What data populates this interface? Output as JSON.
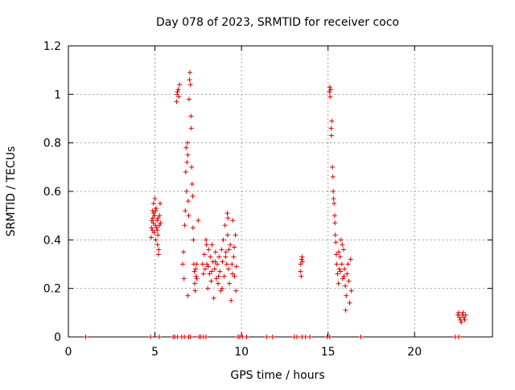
{
  "chart_data": {
    "type": "scatter",
    "title": "Day 078 of 2023, SRMTID for receiver coco",
    "xlabel": "GPS time / hours",
    "ylabel": "SRMTID / TECUs",
    "xlim": [
      0,
      24.5
    ],
    "ylim": [
      0,
      1.2
    ],
    "xticks": [
      0,
      5,
      10,
      15,
      20
    ],
    "yticks": [
      0,
      0.2,
      0.4,
      0.6,
      0.8,
      1.0,
      1.2
    ],
    "xtick_labels": [
      "0",
      "5",
      "10",
      "15",
      "20"
    ],
    "ytick_labels": [
      "0",
      "0.2",
      "0.4",
      "0.6",
      "0.8",
      "1",
      "1.2"
    ],
    "grid": true,
    "marker": "plus",
    "color": "#dd0000",
    "series": [
      {
        "name": "SRMTID",
        "points": [
          [
            1.0,
            0.0
          ],
          [
            4.75,
            0.0
          ],
          [
            5.25,
            0.0
          ],
          [
            6.05,
            0.0
          ],
          [
            6.15,
            0.0
          ],
          [
            6.3,
            0.0
          ],
          [
            6.55,
            0.0
          ],
          [
            6.7,
            0.0
          ],
          [
            6.95,
            0.0
          ],
          [
            7.05,
            0.0
          ],
          [
            7.55,
            0.0
          ],
          [
            7.65,
            0.0
          ],
          [
            7.8,
            0.0
          ],
          [
            7.95,
            0.0
          ],
          [
            9.8,
            0.0
          ],
          [
            9.9,
            0.0
          ],
          [
            10.05,
            0.0
          ],
          [
            10.3,
            0.0
          ],
          [
            11.45,
            0.0
          ],
          [
            11.8,
            0.0
          ],
          [
            13.05,
            0.0
          ],
          [
            13.2,
            0.0
          ],
          [
            13.5,
            0.0
          ],
          [
            13.7,
            0.0
          ],
          [
            13.95,
            0.0
          ],
          [
            14.95,
            0.0
          ],
          [
            15.1,
            0.0
          ],
          [
            16.9,
            0.0
          ],
          [
            22.35,
            0.0
          ],
          [
            22.55,
            0.0
          ],
          [
            4.78,
            0.41
          ],
          [
            4.8,
            0.45
          ],
          [
            4.82,
            0.48
          ],
          [
            4.85,
            0.44
          ],
          [
            4.87,
            0.52
          ],
          [
            4.9,
            0.47
          ],
          [
            4.92,
            0.55
          ],
          [
            4.95,
            0.43
          ],
          [
            4.97,
            0.5
          ],
          [
            5.0,
            0.57
          ],
          [
            5.02,
            0.46
          ],
          [
            5.05,
            0.4
          ],
          [
            5.07,
            0.53
          ],
          [
            5.1,
            0.45
          ],
          [
            5.12,
            0.48
          ],
          [
            5.15,
            0.38
          ],
          [
            5.17,
            0.42
          ],
          [
            5.2,
            0.34
          ],
          [
            5.22,
            0.36
          ],
          [
            5.25,
            0.46
          ],
          [
            5.27,
            0.5
          ],
          [
            5.3,
            0.55
          ],
          [
            5.32,
            0.47
          ],
          [
            4.88,
            0.49
          ],
          [
            4.93,
            0.51
          ],
          [
            5.03,
            0.52
          ],
          [
            5.13,
            0.44
          ],
          [
            5.18,
            0.49
          ],
          [
            6.25,
            0.97
          ],
          [
            6.28,
            1.0
          ],
          [
            6.3,
            1.01
          ],
          [
            6.35,
            1.02
          ],
          [
            6.38,
            0.99
          ],
          [
            6.42,
            1.04
          ],
          [
            6.6,
            0.3
          ],
          [
            6.65,
            0.35
          ],
          [
            6.68,
            0.24
          ],
          [
            6.72,
            0.46
          ],
          [
            6.75,
            0.52
          ],
          [
            6.78,
            0.68
          ],
          [
            6.8,
            0.78
          ],
          [
            6.82,
            0.6
          ],
          [
            6.85,
            0.72
          ],
          [
            6.88,
            0.8
          ],
          [
            6.9,
            0.75
          ],
          [
            6.92,
            0.56
          ],
          [
            6.95,
            0.5
          ],
          [
            6.97,
            0.98
          ],
          [
            7.0,
            1.06
          ],
          [
            7.02,
            1.09
          ],
          [
            7.05,
            1.04
          ],
          [
            7.08,
            0.91
          ],
          [
            7.1,
            0.86
          ],
          [
            7.12,
            0.7
          ],
          [
            7.15,
            0.63
          ],
          [
            7.18,
            0.58
          ],
          [
            7.2,
            0.45
          ],
          [
            7.22,
            0.4
          ],
          [
            7.25,
            0.3
          ],
          [
            7.28,
            0.27
          ],
          [
            7.3,
            0.22
          ],
          [
            7.32,
            0.19
          ],
          [
            7.35,
            0.28
          ],
          [
            7.38,
            0.25
          ],
          [
            7.4,
            0.3
          ],
          [
            7.42,
            0.24
          ],
          [
            6.9,
            0.17
          ],
          [
            7.5,
            0.48
          ],
          [
            7.75,
            0.3
          ],
          [
            7.8,
            0.26
          ],
          [
            7.85,
            0.34
          ],
          [
            7.9,
            0.28
          ],
          [
            7.95,
            0.4
          ],
          [
            8.0,
            0.3
          ],
          [
            8.05,
            0.2
          ],
          [
            8.1,
            0.36
          ],
          [
            8.15,
            0.26
          ],
          [
            8.2,
            0.33
          ],
          [
            8.25,
            0.23
          ],
          [
            8.3,
            0.38
          ],
          [
            8.35,
            0.31
          ],
          [
            8.4,
            0.16
          ],
          [
            8.45,
            0.28
          ],
          [
            8.5,
            0.35
          ],
          [
            8.55,
            0.24
          ],
          [
            8.6,
            0.3
          ],
          [
            8.65,
            0.22
          ],
          [
            8.7,
            0.33
          ],
          [
            8.75,
            0.27
          ],
          [
            8.8,
            0.19
          ],
          [
            8.85,
            0.36
          ],
          [
            8.9,
            0.31
          ],
          [
            8.95,
            0.4
          ],
          [
            9.0,
            0.25
          ],
          [
            9.05,
            0.46
          ],
          [
            9.1,
            0.35
          ],
          [
            9.15,
            0.3
          ],
          [
            9.2,
            0.42
          ],
          [
            9.25,
            0.28
          ],
          [
            9.3,
            0.22
          ],
          [
            9.35,
            0.38
          ],
          [
            9.4,
            0.15
          ],
          [
            9.45,
            0.3
          ],
          [
            9.5,
            0.48
          ],
          [
            9.55,
            0.33
          ],
          [
            9.6,
            0.25
          ],
          [
            9.65,
            0.42
          ],
          [
            9.7,
            0.29
          ],
          [
            7.98,
            0.38
          ],
          [
            8.08,
            0.29
          ],
          [
            8.28,
            0.27
          ],
          [
            8.48,
            0.31
          ],
          [
            8.68,
            0.25
          ],
          [
            8.88,
            0.2
          ],
          [
            9.08,
            0.33
          ],
          [
            9.28,
            0.36
          ],
          [
            9.48,
            0.26
          ],
          [
            9.68,
            0.19
          ],
          [
            9.18,
            0.51
          ],
          [
            9.22,
            0.49
          ],
          [
            9.58,
            0.37
          ],
          [
            13.4,
            0.27
          ],
          [
            13.42,
            0.3
          ],
          [
            13.45,
            0.25
          ],
          [
            13.48,
            0.32
          ],
          [
            13.5,
            0.33
          ],
          [
            13.52,
            0.31
          ],
          [
            15.08,
            1.01
          ],
          [
            15.1,
            1.03
          ],
          [
            15.12,
            0.99
          ],
          [
            15.15,
            1.02
          ],
          [
            15.18,
            0.86
          ],
          [
            15.2,
            0.83
          ],
          [
            15.22,
            0.89
          ],
          [
            15.25,
            0.7
          ],
          [
            15.28,
            0.66
          ],
          [
            15.3,
            0.6
          ],
          [
            15.32,
            0.57
          ],
          [
            15.35,
            0.55
          ],
          [
            15.38,
            0.5
          ],
          [
            15.4,
            0.47
          ],
          [
            15.42,
            0.42
          ],
          [
            15.45,
            0.39
          ],
          [
            15.48,
            0.34
          ],
          [
            15.5,
            0.3
          ],
          [
            15.55,
            0.26
          ],
          [
            15.6,
            0.22
          ],
          [
            15.65,
            0.28
          ],
          [
            15.7,
            0.33
          ],
          [
            15.75,
            0.4
          ],
          [
            15.8,
            0.3
          ],
          [
            15.85,
            0.24
          ],
          [
            15.9,
            0.36
          ],
          [
            15.95,
            0.28
          ],
          [
            16.0,
            0.21
          ],
          [
            16.05,
            0.17
          ],
          [
            16.1,
            0.26
          ],
          [
            16.15,
            0.3
          ],
          [
            16.2,
            0.23
          ],
          [
            16.25,
            0.14
          ],
          [
            16.3,
            0.32
          ],
          [
            16.35,
            0.19
          ],
          [
            15.62,
            0.35
          ],
          [
            15.72,
            0.27
          ],
          [
            15.82,
            0.38
          ],
          [
            15.92,
            0.25
          ],
          [
            16.02,
            0.11
          ],
          [
            22.5,
            0.09
          ],
          [
            22.55,
            0.1
          ],
          [
            22.6,
            0.08
          ],
          [
            22.65,
            0.07
          ],
          [
            22.7,
            0.06
          ],
          [
            22.75,
            0.09
          ],
          [
            22.8,
            0.1
          ],
          [
            22.85,
            0.08
          ],
          [
            22.9,
            0.07
          ],
          [
            22.95,
            0.09
          ]
        ]
      }
    ]
  }
}
